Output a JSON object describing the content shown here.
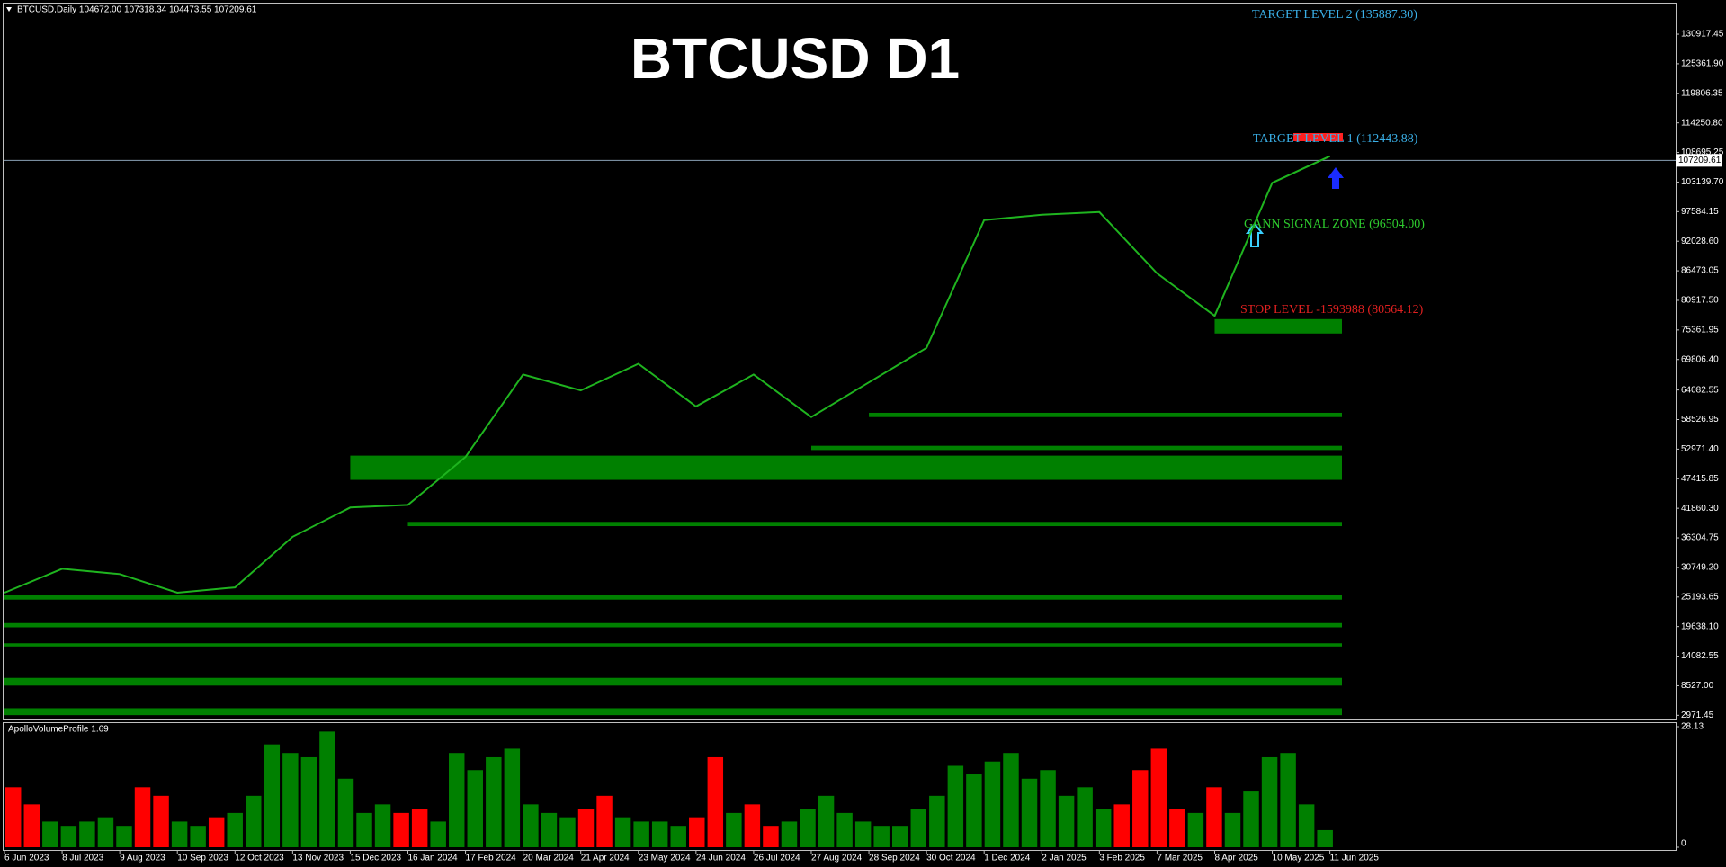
{
  "chart_data": [
    {
      "type": "line",
      "title": "BTCUSD D1",
      "header": "BTCUSD,Daily  104672.00 107318.34 104473.55 107209.61",
      "categories": [
        "6 Jun 2023",
        "8 Jul 2023",
        "9 Aug 2023",
        "10 Sep 2023",
        "12 Oct 2023",
        "13 Nov 2023",
        "15 Dec 2023",
        "16 Jan 2024",
        "17 Feb 2024",
        "20 Mar 2024",
        "21 Apr 2024",
        "23 May 2024",
        "24 Jun 2024",
        "26 Jul 2024",
        "27 Aug 2024",
        "28 Sep 2024",
        "30 Oct 2024",
        "1 Dec 2024",
        "2 Jan 2025",
        "3 Feb 2025",
        "7 Mar 2025",
        "8 Apr 2025",
        "10 May 2025",
        "11 Jun 2025"
      ],
      "values": [
        26000,
        30500,
        29500,
        26000,
        27000,
        36500,
        42000,
        42500,
        51500,
        67000,
        64000,
        69000,
        61000,
        67000,
        59000,
        65500,
        72000,
        96000,
        97000,
        97500,
        86000,
        78000,
        103000,
        108000
      ],
      "color": "#1fb41f",
      "ylim": [
        2351,
        136498
      ],
      "yticks": [
        {
          "value": 2971.45,
          "label": "2971.45"
        },
        {
          "value": 8527,
          "label": "8527.00"
        },
        {
          "value": 14082.55,
          "label": "14082.55"
        },
        {
          "value": 19638.1,
          "label": "19638.10"
        },
        {
          "value": 25193.65,
          "label": "25193.65"
        },
        {
          "value": 30749.2,
          "label": "30749.20"
        },
        36304.75,
        {
          "value": 41860.3,
          "label": "41860.30"
        },
        47415.85,
        {
          "value": 52971.4,
          "label": "52971.40"
        },
        58526.95,
        {
          "value": 64082.55,
          "label": "64082.55"
        },
        {
          "value": 69806.4,
          "label": "69806.40"
        },
        75361.95,
        {
          "value": 80917.5,
          "label": "80917.50"
        },
        86473.05,
        {
          "value": 92028.6,
          "label": "92028.60"
        },
        97584.15,
        {
          "value": 103139.7,
          "label": "103139.70"
        },
        108695.25,
        {
          "value": 114250.8,
          "label": "114250.80"
        },
        119806.35,
        {
          "value": 125361.9,
          "label": "125361.90"
        },
        130917.45
      ],
      "last_price": {
        "value": 107209.61,
        "label": "107209.61"
      },
      "zone_color": "#008000",
      "zones": [
        {
          "start": "8 Apr 2025",
          "range": [
            74700,
            77400
          ]
        },
        {
          "start": "28 Sep 2024",
          "range": [
            59000,
            59800
          ]
        },
        {
          "start": "27 Aug 2024",
          "range": [
            52800,
            53600
          ]
        },
        {
          "start": "15 Dec 2023",
          "range": [
            47200,
            51750
          ]
        },
        {
          "start": "16 Jan 2024",
          "range": [
            38500,
            39300
          ]
        },
        {
          "start": "6 Jun 2023",
          "range": [
            24700,
            25500
          ]
        },
        {
          "start": "6 Jun 2023",
          "range": [
            19500,
            20300
          ]
        },
        {
          "start": "6 Jun 2023",
          "range": [
            15900,
            16500
          ]
        },
        {
          "start": "6 Jun 2023",
          "range": [
            8550,
            10000
          ]
        },
        {
          "start": "6 Jun 2023",
          "range": [
            3000,
            4300
          ]
        }
      ],
      "annotations": [
        "TARGET LEVEL 2 (135887.30)",
        "TARGET LEVEL 1 (112443.88)",
        "GANN SIGNAL ZONE (96504.00)",
        "STOP LEVEL -1593988 (80564.12)"
      ]
    },
    {
      "type": "bar",
      "title": "ApolloVolumeProfile 1.69",
      "values": [
        14,
        10,
        6,
        5,
        6,
        7,
        5,
        14,
        12,
        6,
        5,
        7,
        8,
        12,
        24,
        22,
        21,
        27,
        16,
        8,
        10,
        8,
        9,
        6,
        22,
        18,
        21,
        23,
        10,
        8,
        7,
        9,
        12,
        7,
        6,
        6,
        5,
        7,
        21,
        8,
        10,
        5,
        6,
        9,
        12,
        8,
        6,
        5,
        5,
        9,
        12,
        19,
        17,
        20,
        22,
        16,
        18,
        12,
        14,
        9,
        10,
        18,
        23,
        9,
        8,
        14,
        8,
        13,
        21,
        22,
        10,
        4
      ],
      "colors": [
        "#ff0000",
        "#ff0000",
        "#008000",
        "#008000",
        "#008000",
        "#008000",
        "#008000",
        "#ff0000",
        "#ff0000",
        "#008000",
        "#008000",
        "#ff0000",
        "#008000",
        "#008000",
        "#008000",
        "#008000",
        "#008000",
        "#008000",
        "#008000",
        "#008000",
        "#008000",
        "#ff0000",
        "#ff0000",
        "#008000",
        "#008000",
        "#008000",
        "#008000",
        "#008000",
        "#008000",
        "#008000",
        "#008000",
        "#ff0000",
        "#ff0000",
        "#008000",
        "#008000",
        "#008000",
        "#008000",
        "#ff0000",
        "#ff0000",
        "#008000",
        "#ff0000",
        "#ff0000",
        "#008000",
        "#008000",
        "#008000",
        "#008000",
        "#008000",
        "#008000",
        "#008000",
        "#008000",
        "#008000",
        "#008000",
        "#008000",
        "#008000",
        "#008000",
        "#008000",
        "#008000",
        "#008000",
        "#008000",
        "#008000",
        "#ff0000",
        "#ff0000",
        "#ff0000",
        "#ff0000",
        "#008000",
        "#ff0000",
        "#008000",
        "#008000",
        "#008000",
        "#008000",
        "#008000",
        "#008000"
      ],
      "ylim": [
        0,
        28.13
      ],
      "yticks": [
        0,
        28.13
      ]
    }
  ]
}
